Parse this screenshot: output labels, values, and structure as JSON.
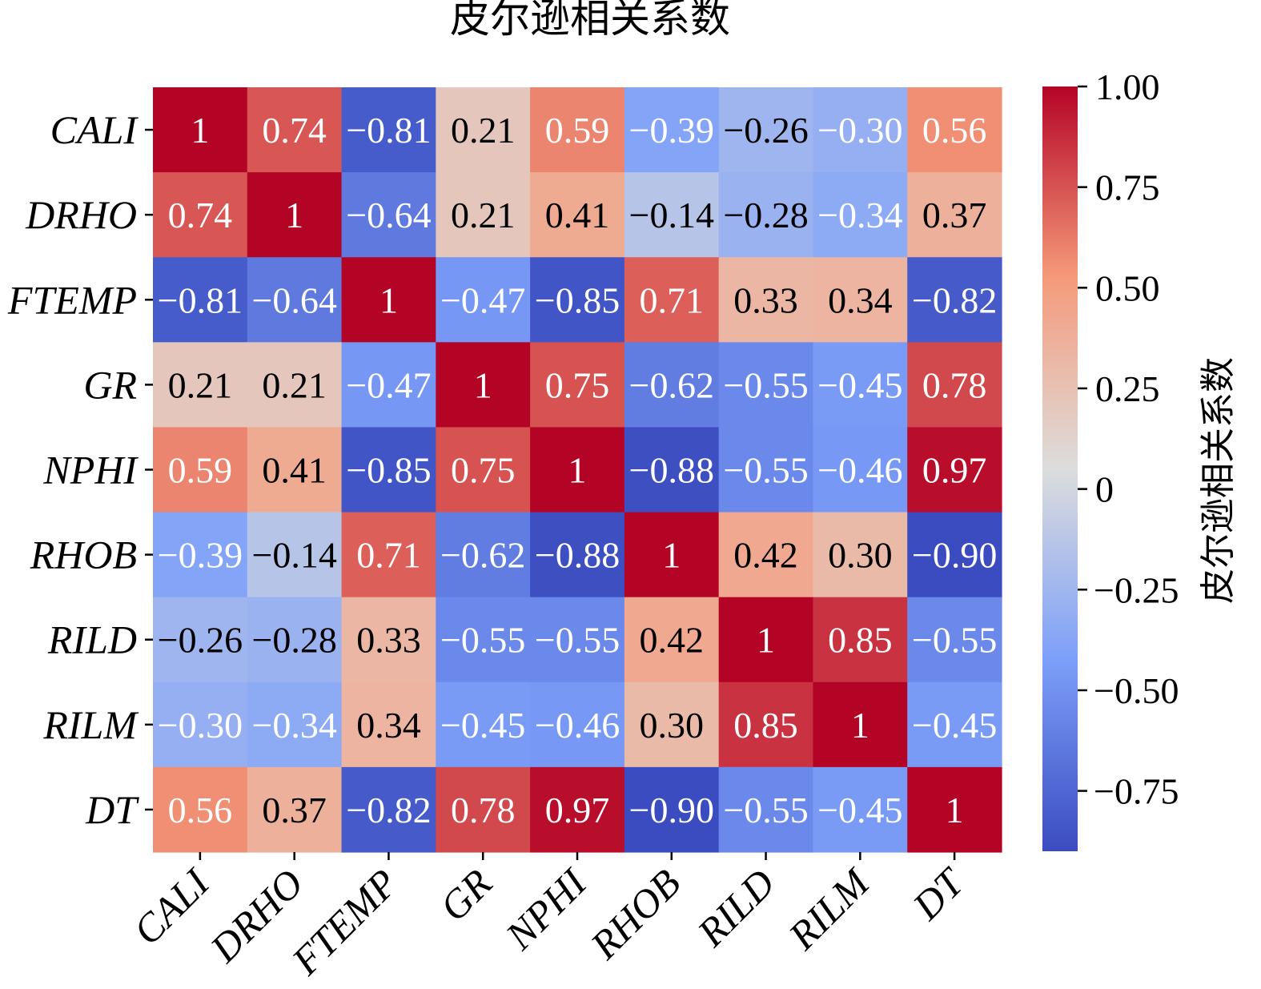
{
  "chart_data": {
    "type": "heatmap",
    "title": "皮尔逊相关系数",
    "variables": [
      "CALI",
      "DRHO",
      "FTEMP",
      "GR",
      "NPHI",
      "RHOB",
      "RILD",
      "RILM",
      "DT"
    ],
    "matrix": [
      [
        1,
        0.74,
        -0.81,
        0.21,
        0.59,
        -0.39,
        -0.26,
        -0.3,
        0.56
      ],
      [
        0.74,
        1,
        -0.64,
        0.21,
        0.41,
        -0.14,
        -0.28,
        -0.34,
        0.37
      ],
      [
        -0.81,
        -0.64,
        1,
        -0.47,
        -0.85,
        0.71,
        0.33,
        0.34,
        -0.82
      ],
      [
        0.21,
        0.21,
        -0.47,
        1,
        0.75,
        -0.62,
        -0.55,
        -0.45,
        0.78
      ],
      [
        0.59,
        0.41,
        -0.85,
        0.75,
        1,
        -0.88,
        -0.55,
        -0.46,
        0.97
      ],
      [
        -0.39,
        -0.14,
        0.71,
        -0.62,
        -0.88,
        1,
        0.42,
        0.3,
        -0.9
      ],
      [
        -0.26,
        -0.28,
        0.33,
        -0.55,
        -0.55,
        0.42,
        1,
        0.85,
        -0.55
      ],
      [
        -0.3,
        -0.34,
        0.34,
        -0.45,
        -0.46,
        0.3,
        0.85,
        1,
        -0.45
      ],
      [
        0.56,
        0.37,
        -0.82,
        0.78,
        0.97,
        -0.9,
        -0.55,
        -0.45,
        1
      ]
    ],
    "annotations": [
      [
        "1",
        "0.74",
        "−0.81",
        "0.21",
        "0.59",
        "−0.39",
        "−0.26",
        "−0.30",
        "0.56"
      ],
      [
        "0.74",
        "1",
        "−0.64",
        "0.21",
        "0.41",
        "−0.14",
        "−0.28",
        "−0.34",
        "0.37"
      ],
      [
        "−0.81",
        "−0.64",
        "1",
        "−0.47",
        "−0.85",
        "0.71",
        "0.33",
        "0.34",
        "−0.82"
      ],
      [
        "0.21",
        "0.21",
        "−0.47",
        "1",
        "0.75",
        "−0.62",
        "−0.55",
        "−0.45",
        "0.78"
      ],
      [
        "0.59",
        "0.41",
        "−0.85",
        "0.75",
        "1",
        "−0.88",
        "−0.55",
        "−0.46",
        "0.97"
      ],
      [
        "−0.39",
        "−0.14",
        "0.71",
        "−0.62",
        "−0.88",
        "1",
        "0.42",
        "0.30",
        "−0.90"
      ],
      [
        "−0.26",
        "−0.28",
        "0.33",
        "−0.55",
        "−0.55",
        "0.42",
        "1",
        "0.85",
        "−0.55"
      ],
      [
        "−0.30",
        "−0.34",
        "0.34",
        "−0.45",
        "−0.46",
        "0.30",
        "0.85",
        "1",
        "−0.45"
      ],
      [
        "0.56",
        "0.37",
        "−0.82",
        "0.78",
        "0.97",
        "−0.90",
        "−0.55",
        "−0.45",
        "1"
      ]
    ],
    "colormap": "coolwarm",
    "colorbar": {
      "label": "皮尔逊相关系数",
      "vmin": -0.9,
      "vmax": 1.0,
      "ticks": [
        1.0,
        0.75,
        0.5,
        0.25,
        0,
        -0.25,
        -0.5,
        -0.75
      ],
      "tick_labels": [
        "1.00",
        "0.75",
        "0.50",
        "0.25",
        "0",
        "−0.25",
        "−0.50",
        "−0.75"
      ]
    },
    "grid": false,
    "legend": "colorbar-right"
  }
}
